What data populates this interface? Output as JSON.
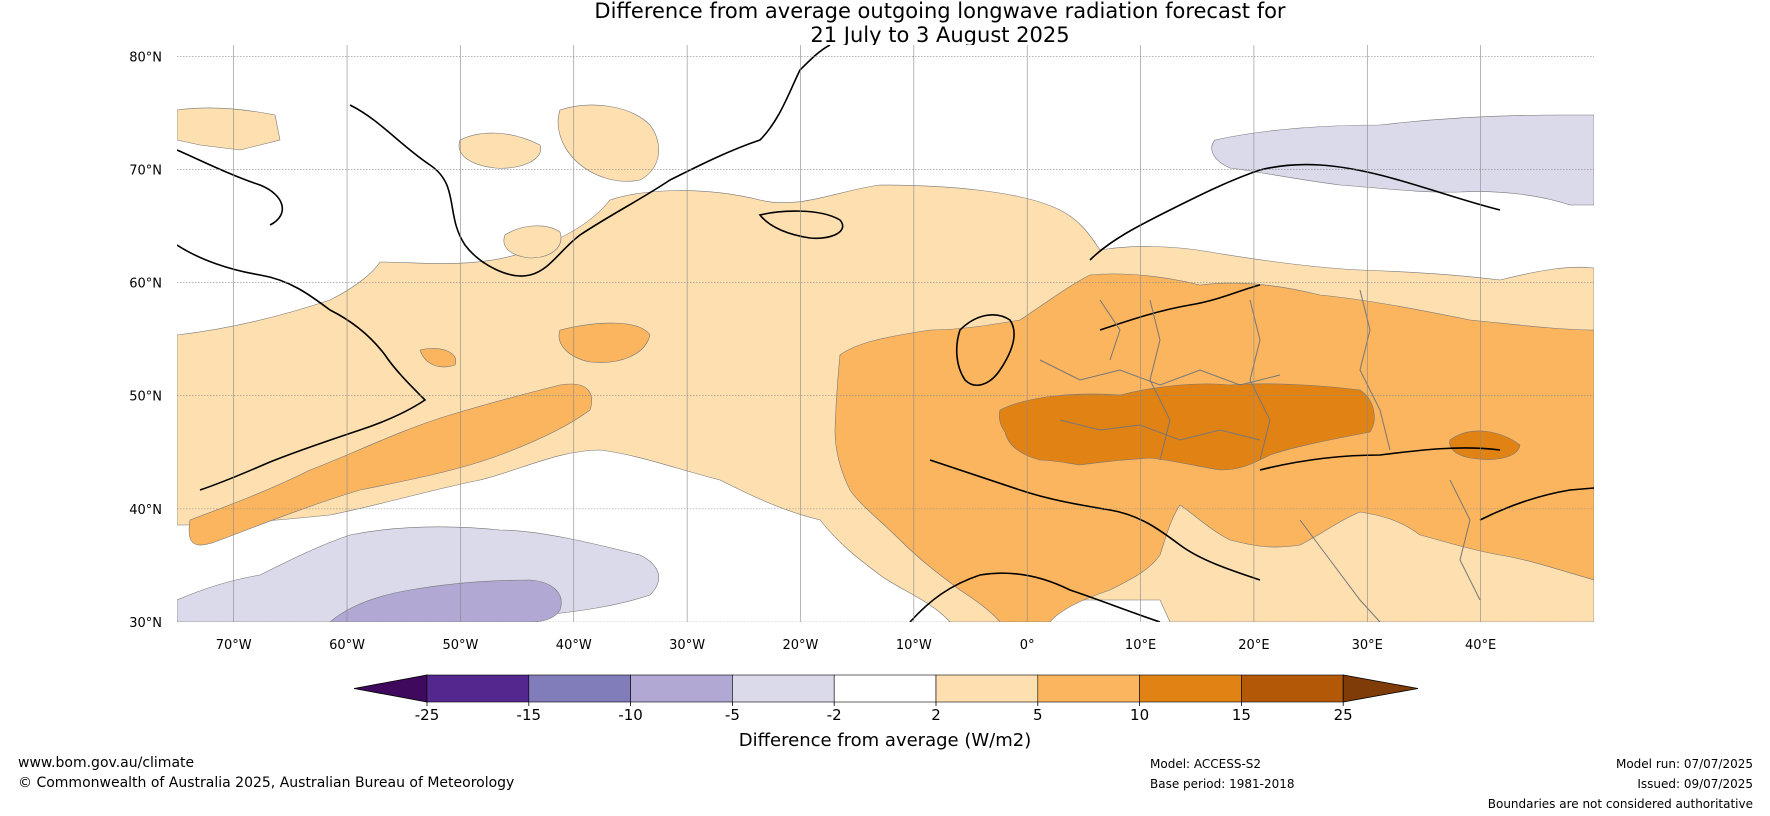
{
  "title": {
    "line1": "Difference from average outgoing longwave radiation forecast for",
    "line2": "21 July to 3 August 2025"
  },
  "axes": {
    "lat_labels": [
      "80°N",
      "70°N",
      "60°N",
      "50°N",
      "40°N",
      "30°N"
    ],
    "lat_values": [
      80,
      70,
      60,
      50,
      40,
      30
    ],
    "lon_labels": [
      "70°W",
      "60°W",
      "50°W",
      "40°W",
      "30°W",
      "20°W",
      "10°W",
      "0°",
      "10°E",
      "20°E",
      "30°E",
      "40°E"
    ],
    "lon_values": [
      -70,
      -60,
      -50,
      -40,
      -30,
      -20,
      -10,
      0,
      10,
      20,
      30,
      40
    ],
    "lon_range": [
      -75,
      50
    ],
    "lat_range": [
      30,
      81
    ]
  },
  "legend": {
    "label": "Difference from average (W/m2)",
    "ticks": [
      "-25",
      "-15",
      "-10",
      "-5",
      "-2",
      "2",
      "5",
      "10",
      "15",
      "25"
    ],
    "colors": [
      "#3f0a5e",
      "#54278f",
      "#807dba",
      "#b1a9d4",
      "#dadaeb",
      "#ffffff",
      "#fddfb0",
      "#fbb55f",
      "#e08214",
      "#b35806",
      "#7f3b08"
    ]
  },
  "footer": {
    "website": "www.bom.gov.au/climate",
    "copyright": "© Commonwealth of Australia 2025, Australian Bureau of Meteorology",
    "model": "Model: ACCESS-S2",
    "base_period": "Base period: 1981-2018",
    "model_run": "Model run: 07/07/2025",
    "issued": "Issued: 09/07/2025",
    "boundaries": "Boundaries are not considered authoritative"
  }
}
